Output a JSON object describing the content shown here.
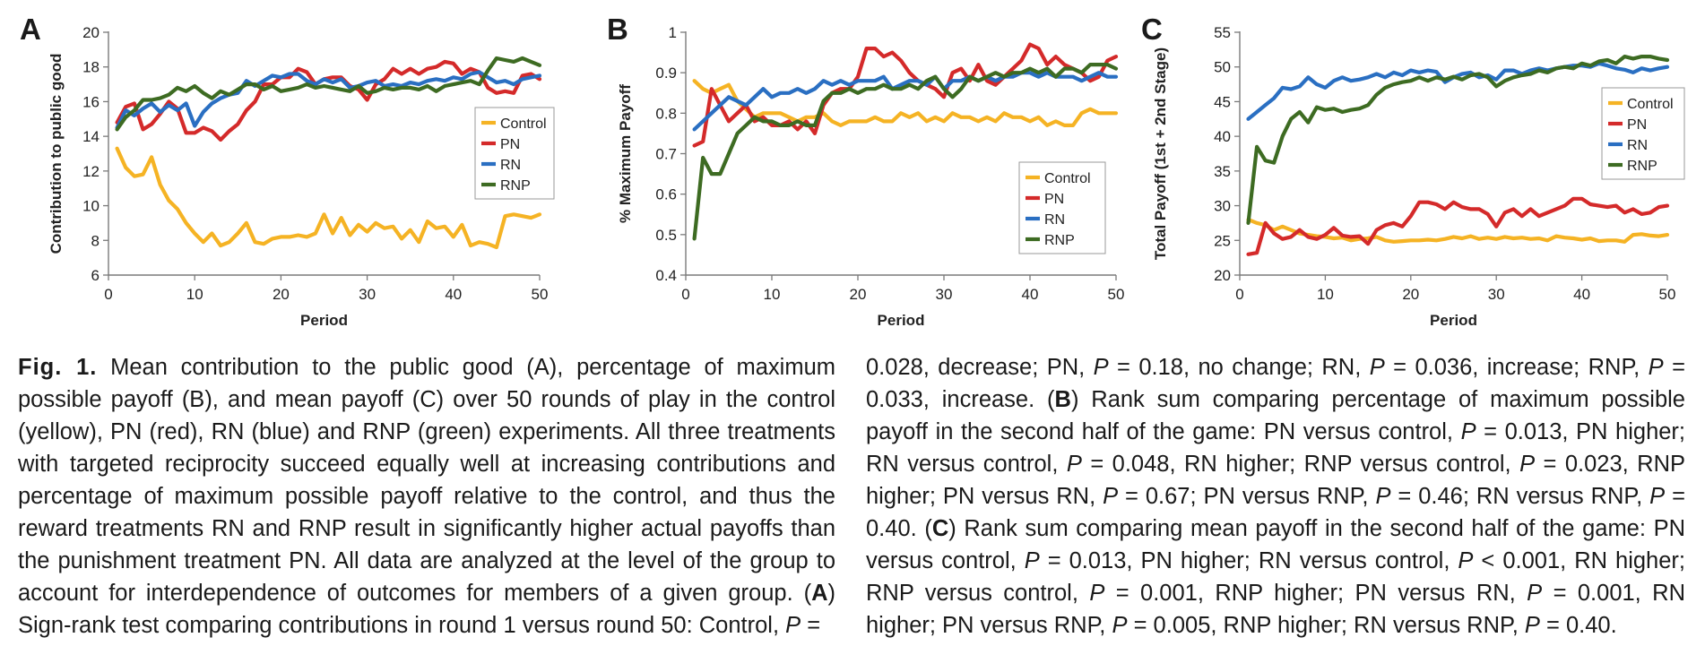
{
  "chart_data": [
    {
      "type": "line",
      "panel": "A",
      "xlabel": "Period",
      "ylabel": "Contribution to public good",
      "xlim": [
        0,
        50
      ],
      "ylim": [
        6,
        20
      ],
      "xticks": [
        0,
        10,
        20,
        30,
        40,
        50
      ],
      "yticks": [
        6,
        8,
        10,
        12,
        14,
        16,
        18,
        20
      ],
      "grid": false,
      "legend_position": "right",
      "legend": [
        "Control",
        "PN",
        "RN",
        "RNP"
      ],
      "x": [
        1,
        2,
        3,
        4,
        5,
        6,
        7,
        8,
        9,
        10,
        11,
        12,
        13,
        14,
        15,
        16,
        17,
        18,
        19,
        20,
        21,
        22,
        23,
        24,
        25,
        26,
        27,
        28,
        29,
        30,
        31,
        32,
        33,
        34,
        35,
        36,
        37,
        38,
        39,
        40,
        41,
        42,
        43,
        44,
        45,
        46,
        47,
        48,
        49,
        50
      ],
      "series": [
        {
          "name": "Control",
          "color": "#f5b324",
          "values": [
            13.3,
            12.2,
            11.7,
            11.8,
            12.8,
            11.2,
            10.3,
            9.8,
            9.0,
            8.4,
            7.9,
            8.4,
            7.7,
            7.9,
            8.4,
            9.0,
            7.9,
            7.8,
            8.1,
            8.2,
            8.2,
            8.3,
            8.2,
            8.4,
            9.5,
            8.4,
            9.3,
            8.3,
            8.9,
            8.5,
            9.0,
            8.7,
            8.8,
            8.1,
            8.6,
            7.9,
            9.1,
            8.7,
            8.8,
            8.2,
            8.9,
            7.7,
            7.9,
            7.8,
            7.6,
            9.4,
            9.5,
            9.4,
            9.3,
            9.5
          ]
        },
        {
          "name": "PN",
          "color": "#d42a2a",
          "values": [
            14.8,
            15.7,
            15.9,
            14.4,
            14.7,
            15.3,
            16.0,
            15.6,
            14.2,
            14.2,
            14.5,
            14.3,
            13.8,
            14.3,
            14.7,
            15.5,
            16.0,
            17.0,
            17.0,
            17.4,
            17.4,
            17.9,
            17.7,
            17.0,
            17.3,
            17.4,
            17.4,
            16.9,
            16.7,
            16.1,
            17.0,
            17.3,
            17.9,
            17.6,
            17.9,
            17.6,
            17.9,
            18.0,
            18.3,
            18.2,
            17.6,
            17.9,
            17.7,
            16.8,
            16.5,
            16.6,
            16.5,
            17.5,
            17.6,
            17.3
          ]
        },
        {
          "name": "RN",
          "color": "#2a6fc2",
          "values": [
            14.5,
            15.5,
            15.2,
            15.6,
            15.9,
            15.4,
            15.8,
            15.5,
            15.9,
            14.6,
            15.4,
            15.9,
            16.2,
            16.4,
            16.5,
            17.2,
            16.9,
            17.2,
            17.5,
            17.4,
            17.6,
            17.6,
            17.2,
            17.0,
            17.3,
            17.1,
            17.3,
            16.8,
            16.9,
            17.1,
            17.2,
            16.9,
            17.0,
            16.9,
            17.1,
            17.0,
            17.2,
            17.3,
            17.2,
            17.4,
            17.3,
            17.6,
            17.7,
            17.4,
            17.1,
            17.2,
            17.0,
            17.3,
            17.4,
            17.5
          ]
        },
        {
          "name": "RNP",
          "color": "#3d6b22",
          "values": [
            14.4,
            15.1,
            15.5,
            16.1,
            16.1,
            16.2,
            16.4,
            16.8,
            16.6,
            16.9,
            16.5,
            16.2,
            16.6,
            16.4,
            16.7,
            17.0,
            17.0,
            16.7,
            16.9,
            16.6,
            16.7,
            16.8,
            17.0,
            16.8,
            16.9,
            16.8,
            16.7,
            16.6,
            16.9,
            16.5,
            16.6,
            16.8,
            16.7,
            16.8,
            16.8,
            16.7,
            16.9,
            16.6,
            16.9,
            17.0,
            17.1,
            17.2,
            17.0,
            17.8,
            18.5,
            18.4,
            18.3,
            18.5,
            18.3,
            18.1
          ]
        }
      ]
    },
    {
      "type": "line",
      "panel": "B",
      "xlabel": "Period",
      "ylabel": "% Maximum Payoff",
      "xlim": [
        0,
        50
      ],
      "ylim": [
        0.4,
        1
      ],
      "xticks": [
        0,
        10,
        20,
        30,
        40,
        50
      ],
      "yticks": [
        0.4,
        0.5,
        0.6,
        0.7,
        0.8,
        0.9,
        1
      ],
      "grid": false,
      "legend_position": "bottom-right",
      "legend": [
        "Control",
        "PN",
        "RN",
        "RNP"
      ],
      "x": [
        1,
        2,
        3,
        4,
        5,
        6,
        7,
        8,
        9,
        10,
        11,
        12,
        13,
        14,
        15,
        16,
        17,
        18,
        19,
        20,
        21,
        22,
        23,
        24,
        25,
        26,
        27,
        28,
        29,
        30,
        31,
        32,
        33,
        34,
        35,
        36,
        37,
        38,
        39,
        40,
        41,
        42,
        43,
        44,
        45,
        46,
        47,
        48,
        49,
        50
      ],
      "series": [
        {
          "name": "Control",
          "color": "#f5b324",
          "values": [
            0.88,
            0.86,
            0.85,
            0.86,
            0.87,
            0.83,
            0.81,
            0.79,
            0.8,
            0.8,
            0.8,
            0.79,
            0.78,
            0.79,
            0.79,
            0.8,
            0.78,
            0.77,
            0.78,
            0.78,
            0.78,
            0.79,
            0.78,
            0.78,
            0.8,
            0.79,
            0.8,
            0.78,
            0.79,
            0.78,
            0.8,
            0.79,
            0.79,
            0.78,
            0.79,
            0.78,
            0.8,
            0.79,
            0.79,
            0.78,
            0.79,
            0.77,
            0.78,
            0.77,
            0.77,
            0.8,
            0.81,
            0.8,
            0.8,
            0.8
          ]
        },
        {
          "name": "PN",
          "color": "#d42a2a",
          "values": [
            0.72,
            0.73,
            0.86,
            0.82,
            0.78,
            0.8,
            0.82,
            0.78,
            0.79,
            0.77,
            0.77,
            0.78,
            0.76,
            0.78,
            0.75,
            0.82,
            0.85,
            0.86,
            0.86,
            0.89,
            0.96,
            0.96,
            0.94,
            0.95,
            0.93,
            0.9,
            0.88,
            0.87,
            0.86,
            0.84,
            0.9,
            0.91,
            0.88,
            0.92,
            0.88,
            0.87,
            0.89,
            0.91,
            0.93,
            0.97,
            0.96,
            0.92,
            0.94,
            0.92,
            0.91,
            0.9,
            0.88,
            0.89,
            0.93,
            0.94
          ]
        },
        {
          "name": "RN",
          "color": "#2a6fc2",
          "values": [
            0.76,
            0.78,
            0.8,
            0.82,
            0.84,
            0.83,
            0.82,
            0.84,
            0.86,
            0.84,
            0.85,
            0.85,
            0.86,
            0.85,
            0.86,
            0.88,
            0.87,
            0.88,
            0.87,
            0.88,
            0.88,
            0.88,
            0.89,
            0.86,
            0.87,
            0.88,
            0.88,
            0.87,
            0.89,
            0.86,
            0.88,
            0.88,
            0.89,
            0.88,
            0.89,
            0.88,
            0.89,
            0.89,
            0.9,
            0.9,
            0.89,
            0.9,
            0.89,
            0.89,
            0.89,
            0.88,
            0.89,
            0.9,
            0.89,
            0.89
          ]
        },
        {
          "name": "RNP",
          "color": "#3d6b22",
          "values": [
            0.49,
            0.69,
            0.65,
            0.65,
            0.7,
            0.75,
            0.77,
            0.79,
            0.78,
            0.78,
            0.77,
            0.77,
            0.78,
            0.77,
            0.77,
            0.83,
            0.85,
            0.85,
            0.86,
            0.85,
            0.86,
            0.86,
            0.87,
            0.86,
            0.86,
            0.87,
            0.86,
            0.88,
            0.89,
            0.86,
            0.84,
            0.86,
            0.89,
            0.88,
            0.89,
            0.9,
            0.89,
            0.9,
            0.9,
            0.91,
            0.9,
            0.91,
            0.89,
            0.91,
            0.91,
            0.9,
            0.92,
            0.92,
            0.92,
            0.91
          ]
        }
      ]
    },
    {
      "type": "line",
      "panel": "C",
      "xlabel": "Period",
      "ylabel": "Total Payoff (1st + 2nd Stage)",
      "xlim": [
        0,
        50
      ],
      "ylim": [
        20,
        55
      ],
      "xticks": [
        0,
        10,
        20,
        30,
        40,
        50
      ],
      "yticks": [
        20,
        25,
        30,
        35,
        40,
        45,
        50,
        55
      ],
      "grid": false,
      "legend_position": "right",
      "legend": [
        "Control",
        "PN",
        "RN",
        "RNP"
      ],
      "x": [
        1,
        2,
        3,
        4,
        5,
        6,
        7,
        8,
        9,
        10,
        11,
        12,
        13,
        14,
        15,
        16,
        17,
        18,
        19,
        20,
        21,
        22,
        23,
        24,
        25,
        26,
        27,
        28,
        29,
        30,
        31,
        32,
        33,
        34,
        35,
        36,
        37,
        38,
        39,
        40,
        41,
        42,
        43,
        44,
        45,
        46,
        47,
        48,
        49,
        50
      ],
      "series": [
        {
          "name": "Control",
          "color": "#f5b324",
          "values": [
            28.0,
            27.5,
            27.2,
            26.5,
            27.0,
            26.5,
            26.0,
            25.8,
            25.6,
            25.5,
            25.3,
            25.4,
            25.0,
            25.2,
            25.3,
            25.5,
            25.0,
            24.8,
            24.9,
            25.0,
            25.0,
            25.1,
            25.0,
            25.2,
            25.5,
            25.3,
            25.6,
            25.2,
            25.4,
            25.2,
            25.5,
            25.3,
            25.4,
            25.2,
            25.3,
            25.0,
            25.6,
            25.4,
            25.3,
            25.1,
            25.3,
            24.9,
            25.0,
            25.0,
            24.8,
            25.8,
            25.9,
            25.7,
            25.6,
            25.8
          ]
        },
        {
          "name": "PN",
          "color": "#d42a2a",
          "values": [
            23.0,
            23.2,
            27.5,
            26.0,
            25.2,
            25.5,
            26.5,
            25.5,
            25.2,
            25.8,
            26.8,
            25.7,
            25.5,
            25.6,
            24.5,
            26.5,
            27.2,
            27.5,
            27.0,
            28.5,
            30.5,
            30.5,
            30.2,
            29.5,
            30.5,
            29.8,
            29.5,
            29.5,
            28.8,
            27.0,
            29.0,
            29.5,
            28.5,
            29.5,
            28.5,
            29.0,
            29.5,
            30.0,
            31.0,
            31.0,
            30.2,
            30.0,
            29.8,
            30.0,
            29.0,
            29.5,
            28.8,
            29.0,
            29.8,
            30.0
          ]
        },
        {
          "name": "RN",
          "color": "#2a6fc2",
          "values": [
            42.5,
            43.5,
            44.5,
            45.5,
            47.0,
            46.8,
            47.2,
            48.5,
            47.5,
            47.0,
            48.0,
            48.5,
            48.0,
            48.2,
            48.5,
            49.0,
            48.5,
            49.2,
            48.8,
            49.5,
            49.2,
            49.5,
            49.3,
            47.8,
            48.5,
            49.0,
            49.2,
            48.5,
            48.8,
            48.2,
            49.5,
            49.5,
            49.0,
            49.5,
            49.8,
            49.5,
            49.8,
            50.0,
            50.2,
            50.2,
            50.0,
            50.5,
            50.2,
            49.8,
            49.6,
            49.2,
            49.8,
            49.5,
            49.8,
            50.0
          ]
        },
        {
          "name": "RNP",
          "color": "#3d6b22",
          "values": [
            27.5,
            38.5,
            36.5,
            36.2,
            40.0,
            42.5,
            43.5,
            42.0,
            44.2,
            43.8,
            44.0,
            43.5,
            43.8,
            44.0,
            44.5,
            46.0,
            47.0,
            47.5,
            47.8,
            48.0,
            48.5,
            48.0,
            48.5,
            48.2,
            48.6,
            48.2,
            48.8,
            49.0,
            48.5,
            47.2,
            48.0,
            48.5,
            48.8,
            49.0,
            49.5,
            49.2,
            49.8,
            50.0,
            49.8,
            50.5,
            50.2,
            50.8,
            51.0,
            50.5,
            51.5,
            51.2,
            51.5,
            51.5,
            51.2,
            51.0
          ]
        }
      ]
    }
  ],
  "caption": {
    "left": [
      {
        "t": "Fig. 1.",
        "s": "fig"
      },
      {
        "t": " Mean contribution to the public good (A), percentage of maximum possible payoff (B), and mean payoff (C) over 50 rounds of play in the control (yellow), PN (red), RN (blue) and RNP (green) experiments. All three treatments with targeted reciprocity succeed equally well at increasing contributions and percentage of maximum possible payoff relative to the control, and thus the reward treatments RN and RNP result in significantly higher actual payoffs than the punishment treatment PN. All data are analyzed at the level of the group to account for interdependence of outcomes for members of a given group. (",
        "s": ""
      },
      {
        "t": "A",
        "s": "b"
      },
      {
        "t": ") Sign-rank test comparing contributions in round 1 versus round 50: Control, ",
        "s": ""
      },
      {
        "t": "P",
        "s": "i"
      },
      {
        "t": " =",
        "s": ""
      }
    ],
    "right": [
      {
        "t": "0.028, decrease; PN, ",
        "s": ""
      },
      {
        "t": "P",
        "s": "i"
      },
      {
        "t": " = 0.18, no change; RN, ",
        "s": ""
      },
      {
        "t": "P",
        "s": "i"
      },
      {
        "t": " = 0.036, increase; RNP, ",
        "s": ""
      },
      {
        "t": "P",
        "s": "i"
      },
      {
        "t": " = 0.033, increase. (",
        "s": ""
      },
      {
        "t": "B",
        "s": "b"
      },
      {
        "t": ") Rank sum comparing percentage of maximum possible payoff in the second half of the game: PN versus control, ",
        "s": ""
      },
      {
        "t": "P",
        "s": "i"
      },
      {
        "t": " = 0.013, PN higher; RN versus control, ",
        "s": ""
      },
      {
        "t": "P",
        "s": "i"
      },
      {
        "t": " = 0.048, RN higher; RNP versus control, ",
        "s": ""
      },
      {
        "t": "P",
        "s": "i"
      },
      {
        "t": " = 0.023, RNP higher; PN versus RN, ",
        "s": ""
      },
      {
        "t": "P",
        "s": "i"
      },
      {
        "t": " = 0.67; PN versus RNP, ",
        "s": ""
      },
      {
        "t": "P",
        "s": "i"
      },
      {
        "t": " = 0.46; RN versus RNP, ",
        "s": ""
      },
      {
        "t": "P",
        "s": "i"
      },
      {
        "t": " = 0.40. (",
        "s": ""
      },
      {
        "t": "C",
        "s": "b"
      },
      {
        "t": ") Rank sum comparing mean payoff in the second half of the game: PN versus control, ",
        "s": ""
      },
      {
        "t": "P",
        "s": "i"
      },
      {
        "t": " = 0.013, PN higher; RN versus control, ",
        "s": ""
      },
      {
        "t": "P",
        "s": "i"
      },
      {
        "t": " < 0.001, RN higher; RNP versus control, ",
        "s": ""
      },
      {
        "t": "P",
        "s": "i"
      },
      {
        "t": " = 0.001, RNP higher; PN versus RN, ",
        "s": ""
      },
      {
        "t": "P",
        "s": "i"
      },
      {
        "t": " = 0.001, RN higher; PN versus RNP, ",
        "s": ""
      },
      {
        "t": "P",
        "s": "i"
      },
      {
        "t": " = 0.005, RNP higher; RN versus RNP, ",
        "s": ""
      },
      {
        "t": "P",
        "s": "i"
      },
      {
        "t": " = 0.40.",
        "s": ""
      }
    ]
  }
}
